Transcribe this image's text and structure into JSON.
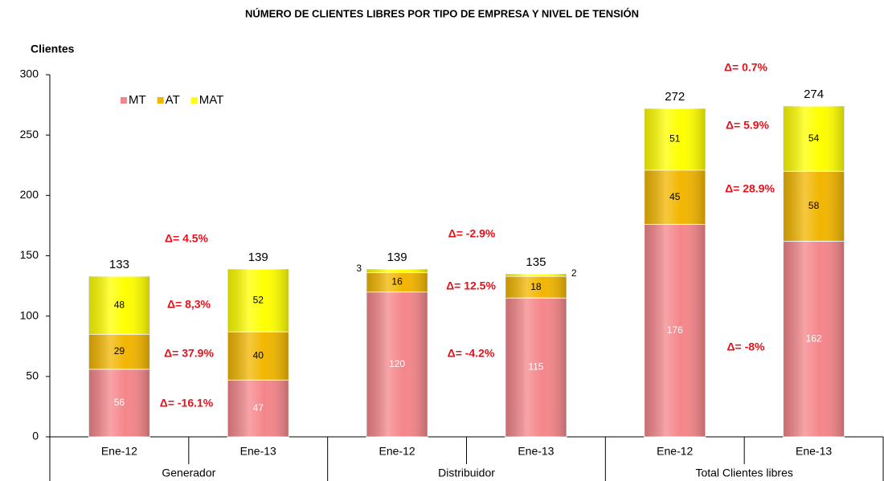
{
  "chart_data": {
    "type": "stacked_bar",
    "title": "NÚMERO DE CLIENTES LIBRES POR  TIPO DE EMPRESA Y NIVEL DE TENSIÓN",
    "y_label": "Clientes",
    "categories": [
      "Ene-12",
      "Ene-13",
      "Ene-12",
      "Ene-13",
      "Ene-12",
      "Ene-13"
    ],
    "groups": [
      "Generador",
      "Distribuidor",
      "Total Clientes libres"
    ],
    "series": [
      {
        "name": "MT",
        "color": "#f4868a",
        "values": [
          56,
          47,
          120,
          115,
          176,
          162
        ]
      },
      {
        "name": "AT",
        "color": "#f2b600",
        "values": [
          29,
          40,
          16,
          18,
          45,
          58
        ]
      },
      {
        "name": "MAT",
        "color": "#ffff00",
        "values": [
          48,
          52,
          3,
          2,
          51,
          54
        ]
      }
    ],
    "totals": [
      133,
      139,
      139,
      135,
      272,
      274
    ],
    "annotations": [
      "Δ= 4.5%",
      "Δ= 8,3%",
      "Δ= 37.9%",
      "Δ= -16.1%",
      "Δ= -2.9%",
      "Δ= 12.5%",
      "Δ= -4.2%",
      "Δ= 0.7%",
      "Δ= 5.9%",
      "Δ= 28.9%",
      "Δ= -8%"
    ],
    "ylim": [
      0,
      300
    ],
    "yticks": [
      0,
      50,
      100,
      150,
      200,
      250,
      300
    ],
    "legend": "top-left"
  }
}
